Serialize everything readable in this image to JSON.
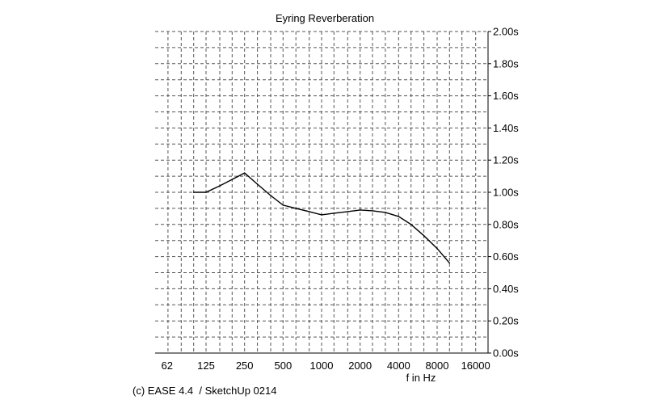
{
  "chart_data": {
    "type": "line",
    "title": "Eyring Reverberation",
    "xlabel": "f in Hz",
    "ylabel": "",
    "x_scale": "log",
    "x_tick_labels": [
      "62",
      "125",
      "250",
      "500",
      "1000",
      "2000",
      "4000",
      "8000",
      "16000"
    ],
    "y_tick_labels": [
      "2.00s",
      "1.80s",
      "1.60s",
      "1.40s",
      "1.20s",
      "1.00s",
      "0.80s",
      "0.60s",
      "0.40s",
      "0.20s",
      "0.00s"
    ],
    "ylim": [
      0,
      2.0
    ],
    "y_axis_side": "right",
    "grid": true,
    "series": [
      {
        "x": [
          100,
          125,
          160,
          200,
          250,
          315,
          400,
          500,
          630,
          800,
          1000,
          1250,
          1600,
          2000,
          2500,
          3150,
          4000,
          5000,
          6300,
          8000,
          10000
        ],
        "values": [
          1.0,
          1.0,
          1.04,
          1.08,
          1.12,
          1.05,
          0.98,
          0.92,
          0.9,
          0.88,
          0.86,
          0.87,
          0.88,
          0.89,
          0.885,
          0.875,
          0.85,
          0.8,
          0.73,
          0.65,
          0.56
        ]
      }
    ]
  },
  "footer": {
    "credit": "(c) EASE 4.4  / SketchUp 0214"
  }
}
